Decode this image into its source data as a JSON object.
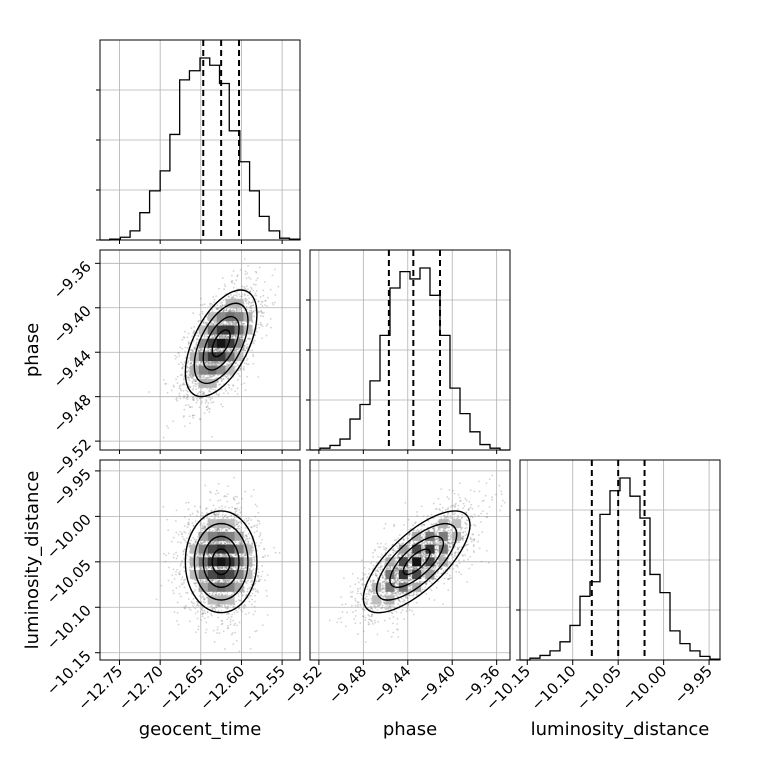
{
  "chart_data": {
    "type": "corner",
    "grid": true,
    "colors": {
      "line": "#000000",
      "grid": "#b0b0b0",
      "scatter": "#808080",
      "background": "#ffffff"
    },
    "params": [
      {
        "label": "geocent_time",
        "mean": -12.625,
        "sigma": 0.022,
        "xlim": [
          -12.774,
          -12.528
        ],
        "ticks": [
          "-12.75",
          "-12.70",
          "-12.65",
          "-12.60",
          "-12.55"
        ],
        "tick_values": [
          -12.75,
          -12.7,
          -12.65,
          -12.6,
          -12.55
        ],
        "quantiles": [
          -12.647,
          -12.625,
          -12.603
        ],
        "hist_bins": [
          -12.774,
          -12.762,
          -12.749,
          -12.737,
          -12.725,
          -12.713,
          -12.7,
          -12.688,
          -12.676,
          -12.664,
          -12.651,
          -12.639,
          -12.627,
          -12.615,
          -12.602,
          -12.59,
          -12.578,
          -12.566,
          -12.553,
          -12.541,
          -12.528
        ],
        "hist_heights": [
          0.0,
          0.005,
          0.015,
          0.05,
          0.15,
          0.27,
          0.38,
          0.58,
          0.88,
          0.93,
          1.0,
          0.96,
          0.86,
          0.6,
          0.43,
          0.27,
          0.13,
          0.05,
          0.01,
          0.005
        ]
      },
      {
        "label": "phase",
        "mean": -9.432,
        "sigma": 0.024,
        "xlim": [
          -9.528,
          -9.348
        ],
        "ticks": [
          "-9.52",
          "-9.48",
          "-9.44",
          "-9.40",
          "-9.36"
        ],
        "tick_values": [
          -9.52,
          -9.48,
          -9.44,
          -9.4,
          -9.36
        ],
        "quantiles": [
          -9.457,
          -9.435,
          -9.411
        ],
        "hist_bins": [
          -9.528,
          -9.519,
          -9.51,
          -9.501,
          -9.492,
          -9.483,
          -9.474,
          -9.465,
          -9.456,
          -9.447,
          -9.438,
          -9.429,
          -9.42,
          -9.411,
          -9.402,
          -9.393,
          -9.384,
          -9.375,
          -9.366,
          -9.357,
          -9.348
        ],
        "hist_heights": [
          0.0,
          0.01,
          0.025,
          0.06,
          0.17,
          0.25,
          0.38,
          0.63,
          0.89,
          0.98,
          0.94,
          1.0,
          0.85,
          0.63,
          0.34,
          0.2,
          0.1,
          0.03,
          0.01,
          0.0
        ]
      },
      {
        "label": "luminosity_distance",
        "mean": -10.05,
        "sigma": 0.028,
        "xlim": [
          -10.158,
          -9.938
        ],
        "ticks": [
          "-10.15",
          "-10.10",
          "-10.05",
          "-10.00",
          "-9.95"
        ],
        "tick_values": [
          -10.15,
          -10.1,
          -10.05,
          -10.0,
          -9.95
        ],
        "quantiles": [
          -10.079,
          -10.05,
          -10.021
        ],
        "hist_bins": [
          -10.158,
          -10.147,
          -10.136,
          -10.125,
          -10.114,
          -10.103,
          -10.092,
          -10.081,
          -10.07,
          -10.059,
          -10.048,
          -10.037,
          -10.026,
          -10.015,
          -10.004,
          -9.993,
          -9.982,
          -9.971,
          -9.96,
          -9.949,
          -9.938
        ],
        "hist_heights": [
          0.0,
          0.01,
          0.025,
          0.05,
          0.1,
          0.19,
          0.35,
          0.43,
          0.8,
          0.93,
          1.0,
          0.9,
          0.78,
          0.47,
          0.37,
          0.16,
          0.09,
          0.05,
          0.02,
          0.005
        ]
      }
    ],
    "pairs": [
      {
        "x": 0,
        "y": 1,
        "correlation": 0.55
      },
      {
        "x": 0,
        "y": 2,
        "correlation": 0.0
      },
      {
        "x": 1,
        "y": 2,
        "correlation": 0.72
      }
    ]
  }
}
